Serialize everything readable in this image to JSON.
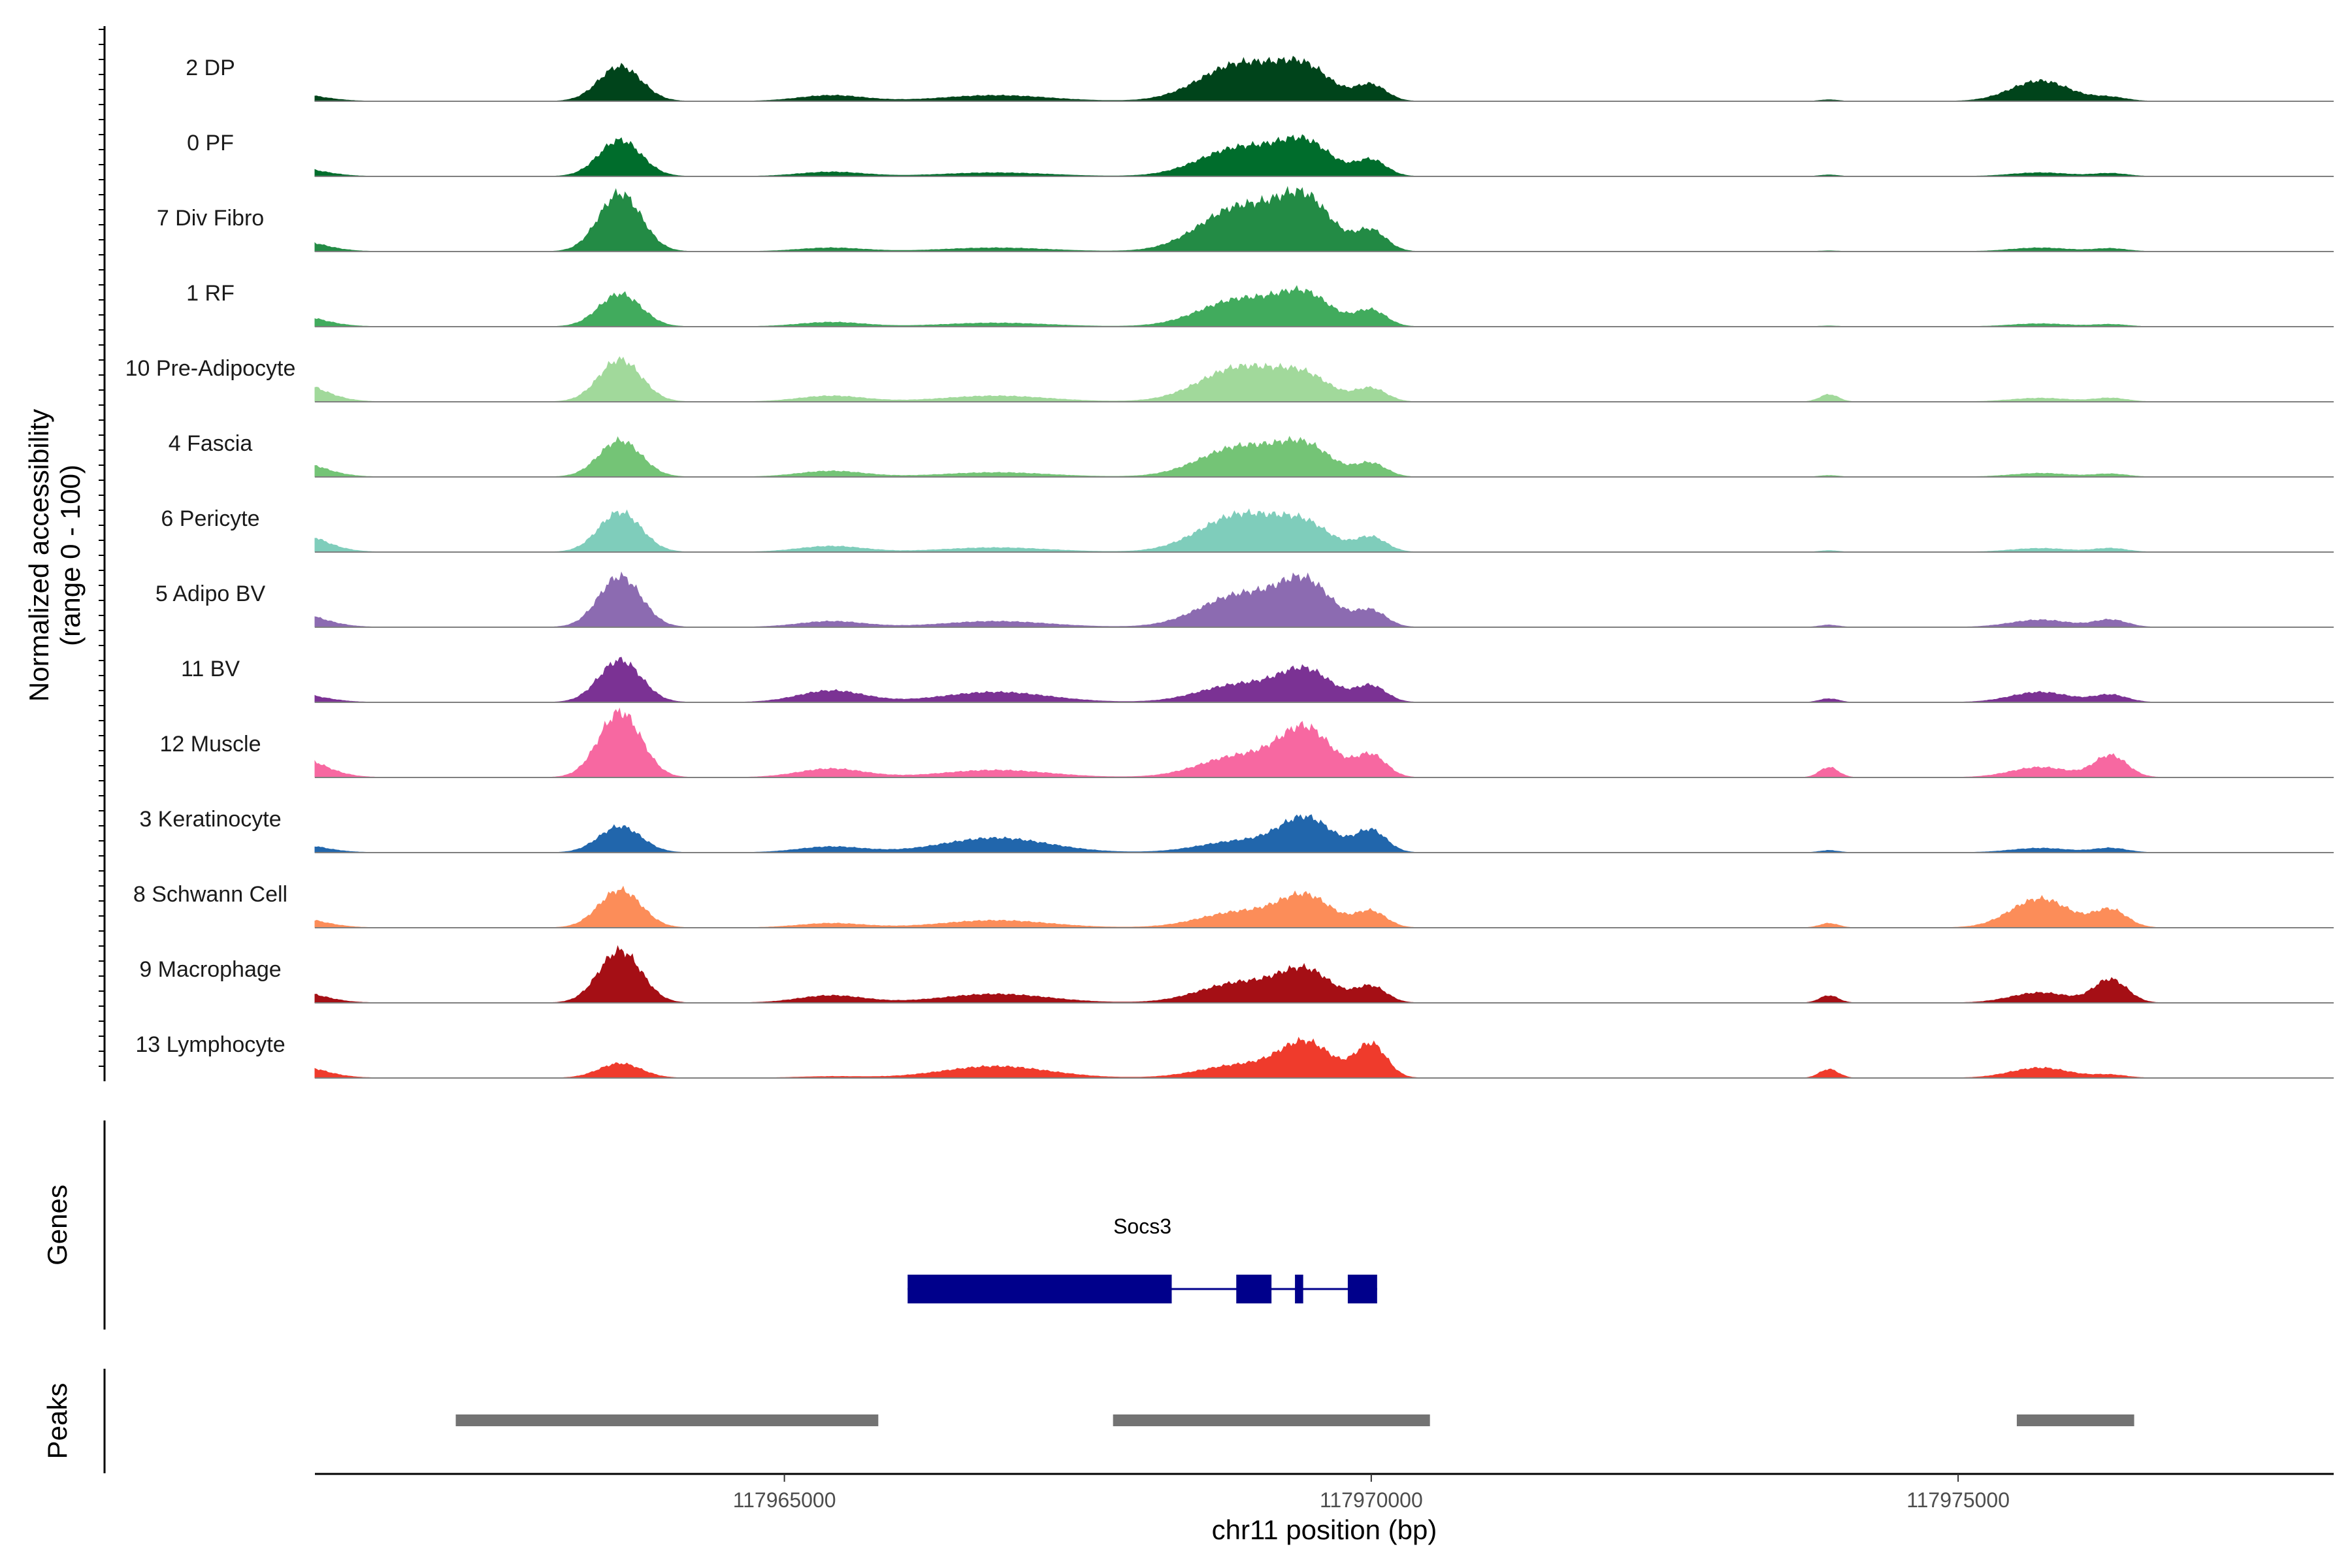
{
  "chart_data": {
    "type": "area",
    "title": "",
    "chromosome": "chr11",
    "xlabel": "chr11 position (bp)",
    "ylabel": "Normalized accessibility",
    "ylabel_range": "(range 0 - 100)",
    "xlim": [
      117961000,
      117978200
    ],
    "ylim": [
      0,
      100
    ],
    "x_ticks": [
      117965000,
      117970000,
      117975000
    ],
    "x_tick_labels": [
      "117965000",
      "117970000",
      "117975000"
    ],
    "peak_centers": [
      117960800,
      117963600,
      117965400,
      117966800,
      117968900,
      117969450,
      117970000,
      117973900,
      117975700,
      117976300
    ],
    "peak_widths": [
      250,
      180,
      280,
      450,
      350,
      220,
      130,
      80,
      250,
      140
    ],
    "tracks": [
      {
        "name": "2 DP",
        "color": "#00441b",
        "heights": [
          10,
          48,
          8,
          8,
          52,
          38,
          22,
          2,
          28,
          5
        ]
      },
      {
        "name": "0 PF",
        "color": "#006d2c",
        "heights": [
          12,
          50,
          6,
          5,
          40,
          40,
          22,
          2,
          5,
          4
        ]
      },
      {
        "name": "7 Div Fibro",
        "color": "#238b45",
        "heights": [
          16,
          80,
          5,
          5,
          62,
          62,
          28,
          1,
          5,
          4
        ]
      },
      {
        "name": "1 RF",
        "color": "#41ab5d",
        "heights": [
          16,
          45,
          6,
          5,
          38,
          38,
          22,
          1,
          4,
          3
        ]
      },
      {
        "name": "10 Pre-Adipocyte",
        "color": "#a1d99b",
        "heights": [
          28,
          58,
          8,
          8,
          48,
          28,
          18,
          10,
          5,
          5
        ]
      },
      {
        "name": "4 Fascia",
        "color": "#74c476",
        "heights": [
          22,
          50,
          8,
          6,
          42,
          36,
          18,
          2,
          5,
          4
        ]
      },
      {
        "name": "6 Pericyte",
        "color": "#7fcdbb",
        "heights": [
          28,
          55,
          8,
          6,
          52,
          30,
          20,
          2,
          5,
          5
        ]
      },
      {
        "name": "5 Adipo BV",
        "color": "#8c6bb1",
        "heights": [
          20,
          70,
          8,
          8,
          45,
          55,
          22,
          3,
          10,
          10
        ]
      },
      {
        "name": "11 BV",
        "color": "#7b3294",
        "heights": [
          12,
          58,
          16,
          14,
          25,
          40,
          22,
          5,
          14,
          10
        ]
      },
      {
        "name": "12 Muscle",
        "color": "#f768a1",
        "heights": [
          30,
          90,
          12,
          10,
          30,
          62,
          30,
          14,
          14,
          30
        ]
      },
      {
        "name": "3 Keratinocyte",
        "color": "#2166ac",
        "heights": [
          12,
          36,
          8,
          20,
          16,
          45,
          30,
          3,
          6,
          6
        ]
      },
      {
        "name": "8 Schwann Cell",
        "color": "#fc8d59",
        "heights": [
          14,
          52,
          6,
          10,
          22,
          40,
          22,
          6,
          40,
          24
        ]
      },
      {
        "name": "9 Macrophage",
        "color": "#a50f15",
        "heights": [
          16,
          72,
          10,
          12,
          28,
          40,
          22,
          10,
          14,
          32
        ]
      },
      {
        "name": "13 Lymphocyte",
        "color": "#ef3b2c",
        "heights": [
          18,
          20,
          2,
          16,
          18,
          46,
          46,
          12,
          14,
          4
        ]
      }
    ],
    "genes_title": "Genes",
    "gene": {
      "name": "Socs3",
      "color": "#00008b",
      "exons": [
        [
          117966050,
          117968300
        ],
        [
          117968850,
          117969150
        ],
        [
          117969350,
          117969420
        ],
        [
          117969800,
          117970050
        ]
      ]
    },
    "peaks_title": "Peaks",
    "peaks_color": "#737373",
    "peaks": [
      [
        117962200,
        117965800
      ],
      [
        117967800,
        117970500
      ],
      [
        117975500,
        117976500
      ]
    ]
  }
}
